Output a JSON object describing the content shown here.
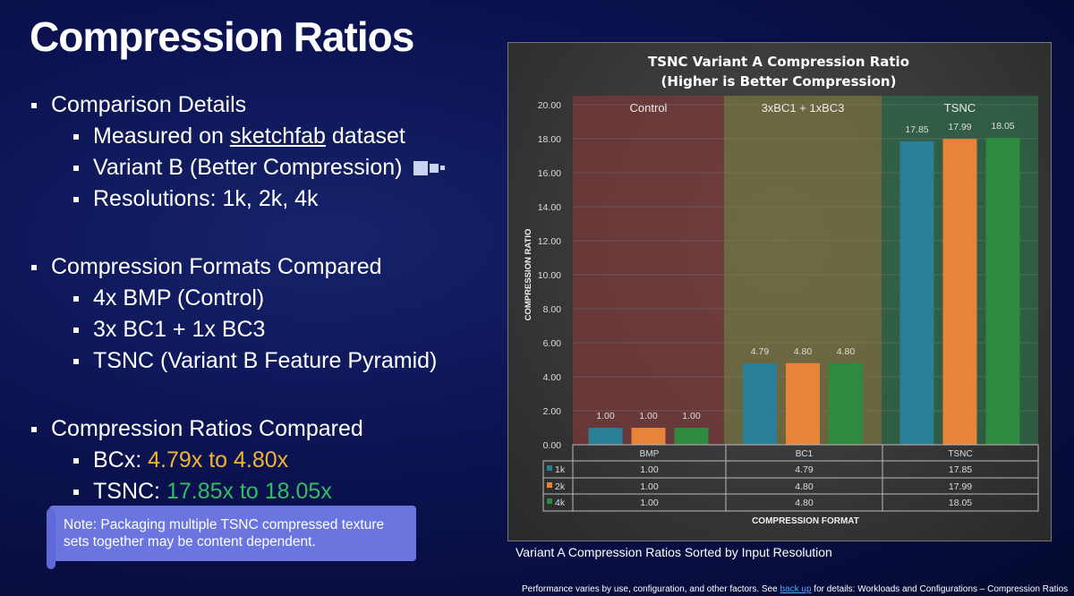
{
  "slide": {
    "title": "Compression Ratios",
    "sections": [
      {
        "heading": "Comparison Details",
        "items": [
          {
            "pre": "Measured on ",
            "link": "sketchfab",
            "post": " dataset"
          },
          {
            "pre": "Variant B (Better Compression)"
          },
          {
            "pre": " Resolutions: 1k, 2k, 4k"
          }
        ]
      },
      {
        "heading": "Compression Formats Compared",
        "items": [
          {
            "pre": "4x BMP (Control)"
          },
          {
            "pre": "3x BC1 + 1x BC3"
          },
          {
            "pre": "TSNC (Variant B Feature Pyramid)"
          }
        ]
      },
      {
        "heading": "Compression Ratios Compared",
        "items": [
          {
            "pre": "BCx: ",
            "highlight": "4.79x to 4.80x"
          },
          {
            "pre": "TSNC: ",
            "highlight": "17.85x to 18.05x"
          }
        ]
      }
    ],
    "note": "Note: Packaging multiple TSNC compressed texture sets together may be content dependent.",
    "caption": "Variant A Compression Ratios Sorted by Input Resolution",
    "footer": {
      "pre": "Performance varies by use, configuration, and other factors. See ",
      "link": "back up",
      "post": " for details: Workloads and Configurations – Compression Ratios"
    },
    "colors": {
      "highlight_bcx": "#f2b531",
      "highlight_tsnc": "#2fbf62",
      "note_bg": "#6a75e0"
    }
  },
  "chart_data": {
    "type": "bar",
    "title": "TSNC Variant A Compression Ratio",
    "subtitle": "(Higher is Better Compression)",
    "xlabel": "COMPRESSION FORMAT",
    "ylabel": "COMPRESSION RATIO",
    "ylim": [
      0,
      20
    ],
    "yticks": [
      "0.00",
      "2.00",
      "4.00",
      "6.00",
      "8.00",
      "10.00",
      "12.00",
      "14.00",
      "16.00",
      "18.00",
      "20.00"
    ],
    "grid": true,
    "categories": [
      "BMP",
      "BC1",
      "TSNC"
    ],
    "group_labels": [
      "Control",
      "3xBC1 + 1xBC3",
      "TSNC"
    ],
    "group_colors": [
      "#7a3a3a",
      "#7a7440",
      "#2f6a48"
    ],
    "series": [
      {
        "name": "1k",
        "color": "#2a7f96",
        "values": [
          1.0,
          4.79,
          17.85
        ]
      },
      {
        "name": "2k",
        "color": "#e8833a",
        "values": [
          1.0,
          4.8,
          17.99
        ]
      },
      {
        "name": "4k",
        "color": "#2e8a3e",
        "values": [
          1.0,
          4.8,
          18.05
        ]
      }
    ],
    "data_table": true
  }
}
